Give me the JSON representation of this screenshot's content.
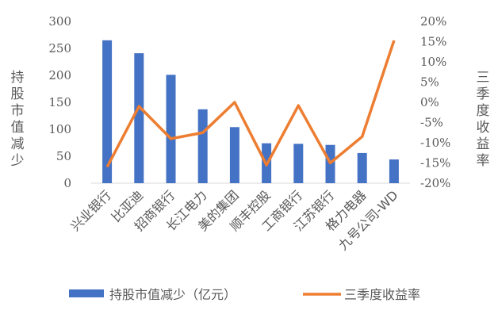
{
  "chart_data": {
    "type": "bar+line",
    "categories": [
      "兴业银行",
      "比亚迪",
      "招商银行",
      "长江电力",
      "美的集团",
      "顺丰控股",
      "工商银行",
      "江苏银行",
      "格力电器",
      "九号公司-WD"
    ],
    "series": [
      {
        "name": "持股市值减少（亿元）",
        "type": "bar",
        "axis": "left",
        "color": "#4472C4",
        "values": [
          265,
          241,
          201,
          137,
          104,
          74,
          73,
          71,
          56,
          44
        ]
      },
      {
        "name": "三季度收益率",
        "type": "line",
        "axis": "right",
        "color": "#ED7D31",
        "values": [
          -16.0,
          -1.0,
          -9.0,
          -7.5,
          0.0,
          -15.5,
          -0.8,
          -15.0,
          -8.5,
          15.3
        ]
      }
    ],
    "ylabel_left": "持股市值减少",
    "ylabel_right": "三季度收益率",
    "ylim_left": [
      0,
      300
    ],
    "yticks_left": [
      "0",
      "50",
      "100",
      "150",
      "200",
      "250",
      "300"
    ],
    "ylim_right": [
      -20,
      20
    ],
    "yticks_right": [
      "-20%",
      "-15%",
      "-10%",
      "-5%",
      "0%",
      "5%",
      "10%",
      "15%",
      "20%"
    ],
    "grid": false,
    "legend_position": "bottom"
  }
}
